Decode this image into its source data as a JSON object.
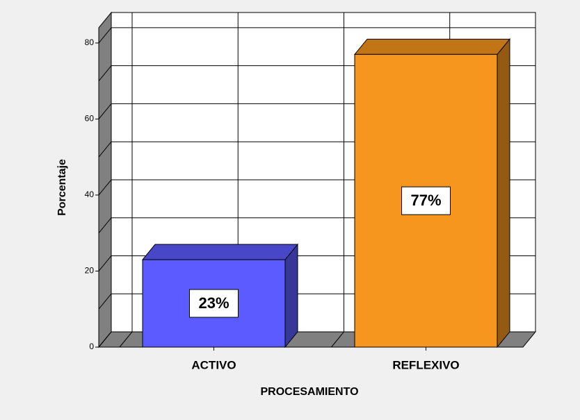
{
  "chart_data": {
    "type": "bar3d",
    "x_label": "PROCESAMIENTO",
    "y_label": "Porcentaje",
    "categories": [
      "ACTIVO",
      "REFLEXIVO"
    ],
    "values": [
      23,
      77
    ],
    "value_labels": [
      "23%",
      "77%"
    ],
    "colors": [
      "#5b5bff",
      "#f7961e"
    ],
    "ylim": [
      0,
      84
    ],
    "yticks": [
      0,
      20,
      40,
      60,
      80
    ],
    "minor_yticks": [
      10,
      30,
      50,
      70
    ],
    "grid": true
  }
}
